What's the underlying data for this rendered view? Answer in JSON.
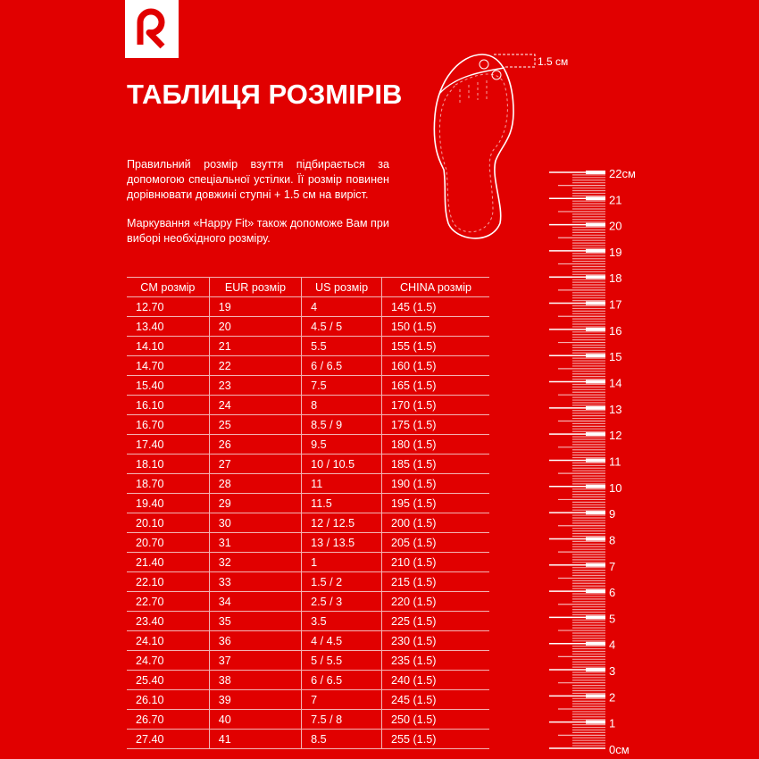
{
  "brand": {
    "logo_letter": "R",
    "color": "#e10000"
  },
  "title": "ТАБЛИЦЯ РОЗМІРІВ",
  "intro": {
    "paragraph1": "Правильний розмір взуття підбирається за допомогою спеціальної устілки. Її розмір повинен дорівнювати довжині ступні + 1.5 см на виріст.",
    "paragraph2": "Маркування «Happy Fit» також допоможе Вам при виборі необхідного розміру."
  },
  "foot_diagram": {
    "allowance_label": "1.5 см"
  },
  "ruler": {
    "max_cm": 22,
    "unit": "см",
    "labels": [
      "0см",
      "1",
      "2",
      "3",
      "4",
      "5",
      "6",
      "7",
      "8",
      "9",
      "10",
      "11",
      "12",
      "13",
      "14",
      "15",
      "16",
      "17",
      "18",
      "19",
      "20",
      "21",
      "22см"
    ]
  },
  "table": {
    "headers": [
      "CM розмір",
      "EUR розмір",
      "US розмір",
      "CHINA розмір"
    ],
    "rows": [
      [
        "12.70",
        "19",
        "4",
        "145 (1.5)"
      ],
      [
        "13.40",
        "20",
        "4.5 / 5",
        "150 (1.5)"
      ],
      [
        "14.10",
        "21",
        "5.5",
        "155 (1.5)"
      ],
      [
        "14.70",
        "22",
        "6 / 6.5",
        "160 (1.5)"
      ],
      [
        "15.40",
        "23",
        "7.5",
        "165 (1.5)"
      ],
      [
        "16.10",
        "24",
        "8",
        "170 (1.5)"
      ],
      [
        "16.70",
        "25",
        "8.5 / 9",
        "175 (1.5)"
      ],
      [
        "17.40",
        "26",
        "9.5",
        "180 (1.5)"
      ],
      [
        "18.10",
        "27",
        "10 / 10.5",
        "185 (1.5)"
      ],
      [
        "18.70",
        "28",
        "11",
        "190 (1.5)"
      ],
      [
        "19.40",
        "29",
        "11.5",
        "195 (1.5)"
      ],
      [
        "20.10",
        "30",
        "12 / 12.5",
        "200 (1.5)"
      ],
      [
        "20.70",
        "31",
        "13 / 13.5",
        "205 (1.5)"
      ],
      [
        "21.40",
        "32",
        "1",
        "210 (1.5)"
      ],
      [
        "22.10",
        "33",
        "1.5 / 2",
        "215 (1.5)"
      ],
      [
        "22.70",
        "34",
        "2.5 / 3",
        "220 (1.5)"
      ],
      [
        "23.40",
        "35",
        "3.5",
        "225 (1.5)"
      ],
      [
        "24.10",
        "36",
        "4 / 4.5",
        "230 (1.5)"
      ],
      [
        "24.70",
        "37",
        "5 / 5.5",
        "235 (1.5)"
      ],
      [
        "25.40",
        "38",
        "6 / 6.5",
        "240 (1.5)"
      ],
      [
        "26.10",
        "39",
        "7",
        "245 (1.5)"
      ],
      [
        "26.70",
        "40",
        "7.5 / 8",
        "250 (1.5)"
      ],
      [
        "27.40",
        "41",
        "8.5",
        "255 (1.5)"
      ]
    ]
  }
}
